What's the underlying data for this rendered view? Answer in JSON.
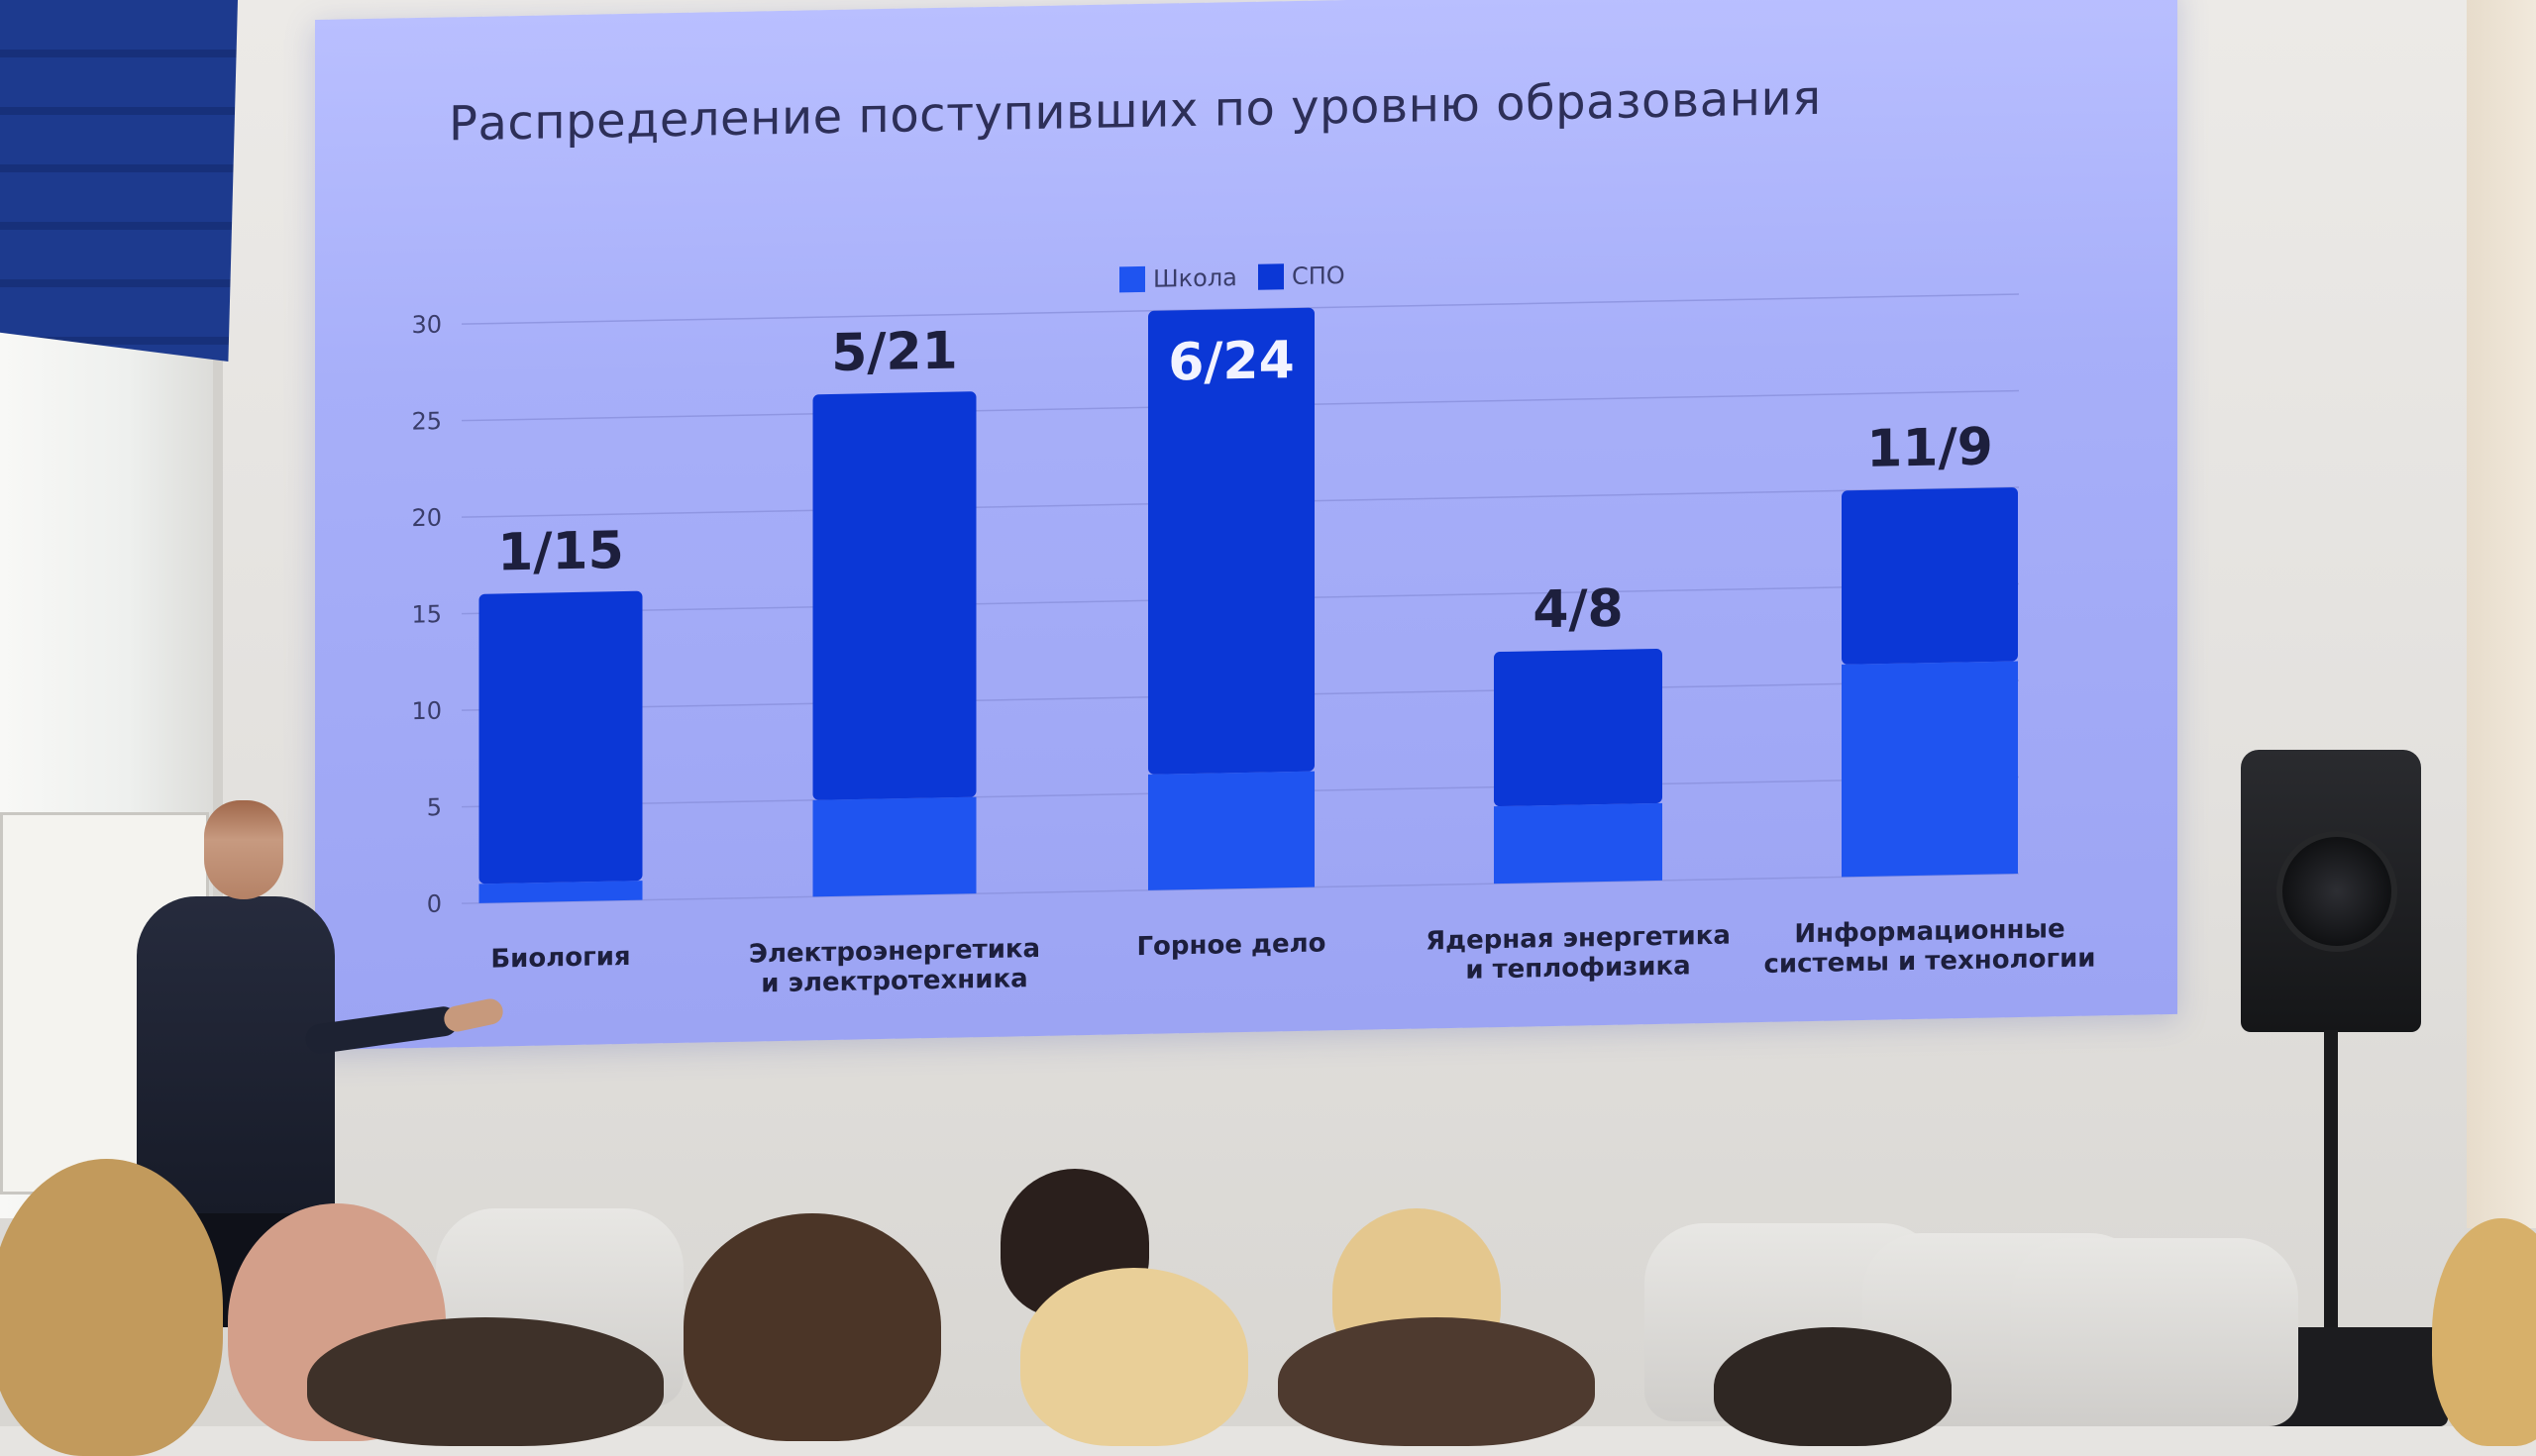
{
  "slide": {
    "title": "Распределение поступивших по уровню образования"
  },
  "colors": {
    "school": "#1f54f0",
    "spo": "#0b37d6",
    "grid": "#8a91dd",
    "axis_text": "#3a3d6a",
    "label_text": "#1d1f3d",
    "screen_bg": "#a7aff9"
  },
  "chart_data": {
    "type": "bar",
    "stacked": true,
    "title": "Распределение поступивших по уровню образования",
    "xlabel": "",
    "ylabel": "",
    "ylim": [
      0,
      30
    ],
    "yticks": [
      0,
      5,
      10,
      15,
      20,
      25,
      30
    ],
    "grid": true,
    "legend_position": "top-center",
    "categories": [
      "Биология",
      "Электроэнергетика\nи электротехника",
      "Горное дело",
      "Ядерная энергетика\nи теплофизика",
      "Информационные\nсистемы и технологии"
    ],
    "series": [
      {
        "name": "Школа",
        "values": [
          1,
          5,
          6,
          4,
          11
        ],
        "color": "#1f54f0"
      },
      {
        "name": "СПО",
        "values": [
          15,
          21,
          24,
          8,
          9
        ],
        "color": "#0b37d6"
      }
    ],
    "data_labels": [
      "1/15",
      "5/21",
      "6/24",
      "4/8",
      "11/9"
    ]
  }
}
